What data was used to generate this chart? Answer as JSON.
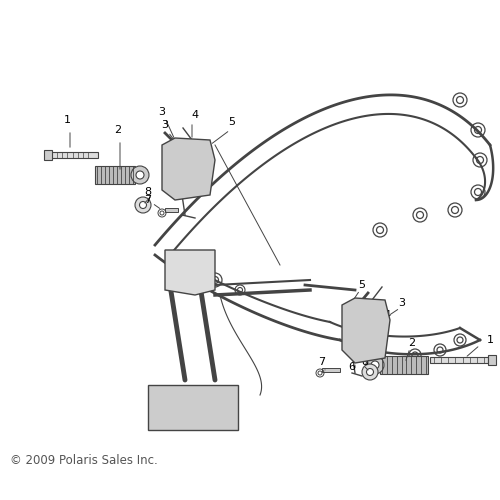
{
  "background_color": "#ffffff",
  "copyright_text": "© 2009 Polaris Sales Inc.",
  "fig_width": 5.0,
  "fig_height": 5.0,
  "dpi": 100,
  "line_color": "#444444",
  "light_color": "#888888",
  "fill_color": "#cccccc",
  "copyright_fontsize": 8.5,
  "label_fontsize": 8
}
